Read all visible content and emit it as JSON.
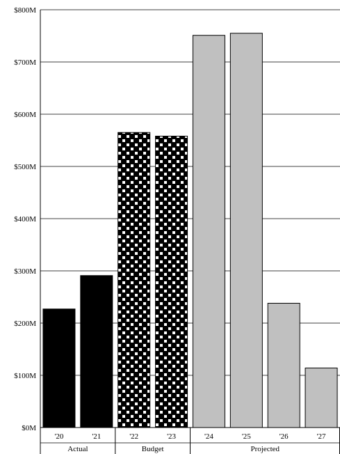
{
  "chart_data": {
    "type": "bar",
    "categories": [
      "'20",
      "'21",
      "'22",
      "'23",
      "'24",
      "'25",
      "'26",
      "'27"
    ],
    "values": [
      227,
      291,
      565,
      558,
      751,
      755,
      238,
      114
    ],
    "groups": [
      {
        "label": "Actual",
        "categories": [
          "'20",
          "'21"
        ],
        "style": "solid-black"
      },
      {
        "label": "Budget",
        "categories": [
          "'22",
          "'23"
        ],
        "style": "black-with-white-dots"
      },
      {
        "label": "Projected",
        "categories": [
          "'24",
          "'25",
          "'26",
          "'27"
        ],
        "style": "light-gray"
      }
    ],
    "y_ticks": [
      "$0M",
      "$100M",
      "$200M",
      "$300M",
      "$400M",
      "$500M",
      "$600M",
      "$700M",
      "$800M"
    ],
    "y_tick_values": [
      0,
      100,
      200,
      300,
      400,
      500,
      600,
      700,
      800
    ],
    "ylim": [
      0,
      800
    ],
    "grid": true,
    "colors": {
      "actual": "#000000",
      "budget": "#000000",
      "budget_dots": "#ffffff",
      "projected": "#c0c0c0",
      "outline": "#000000"
    }
  }
}
